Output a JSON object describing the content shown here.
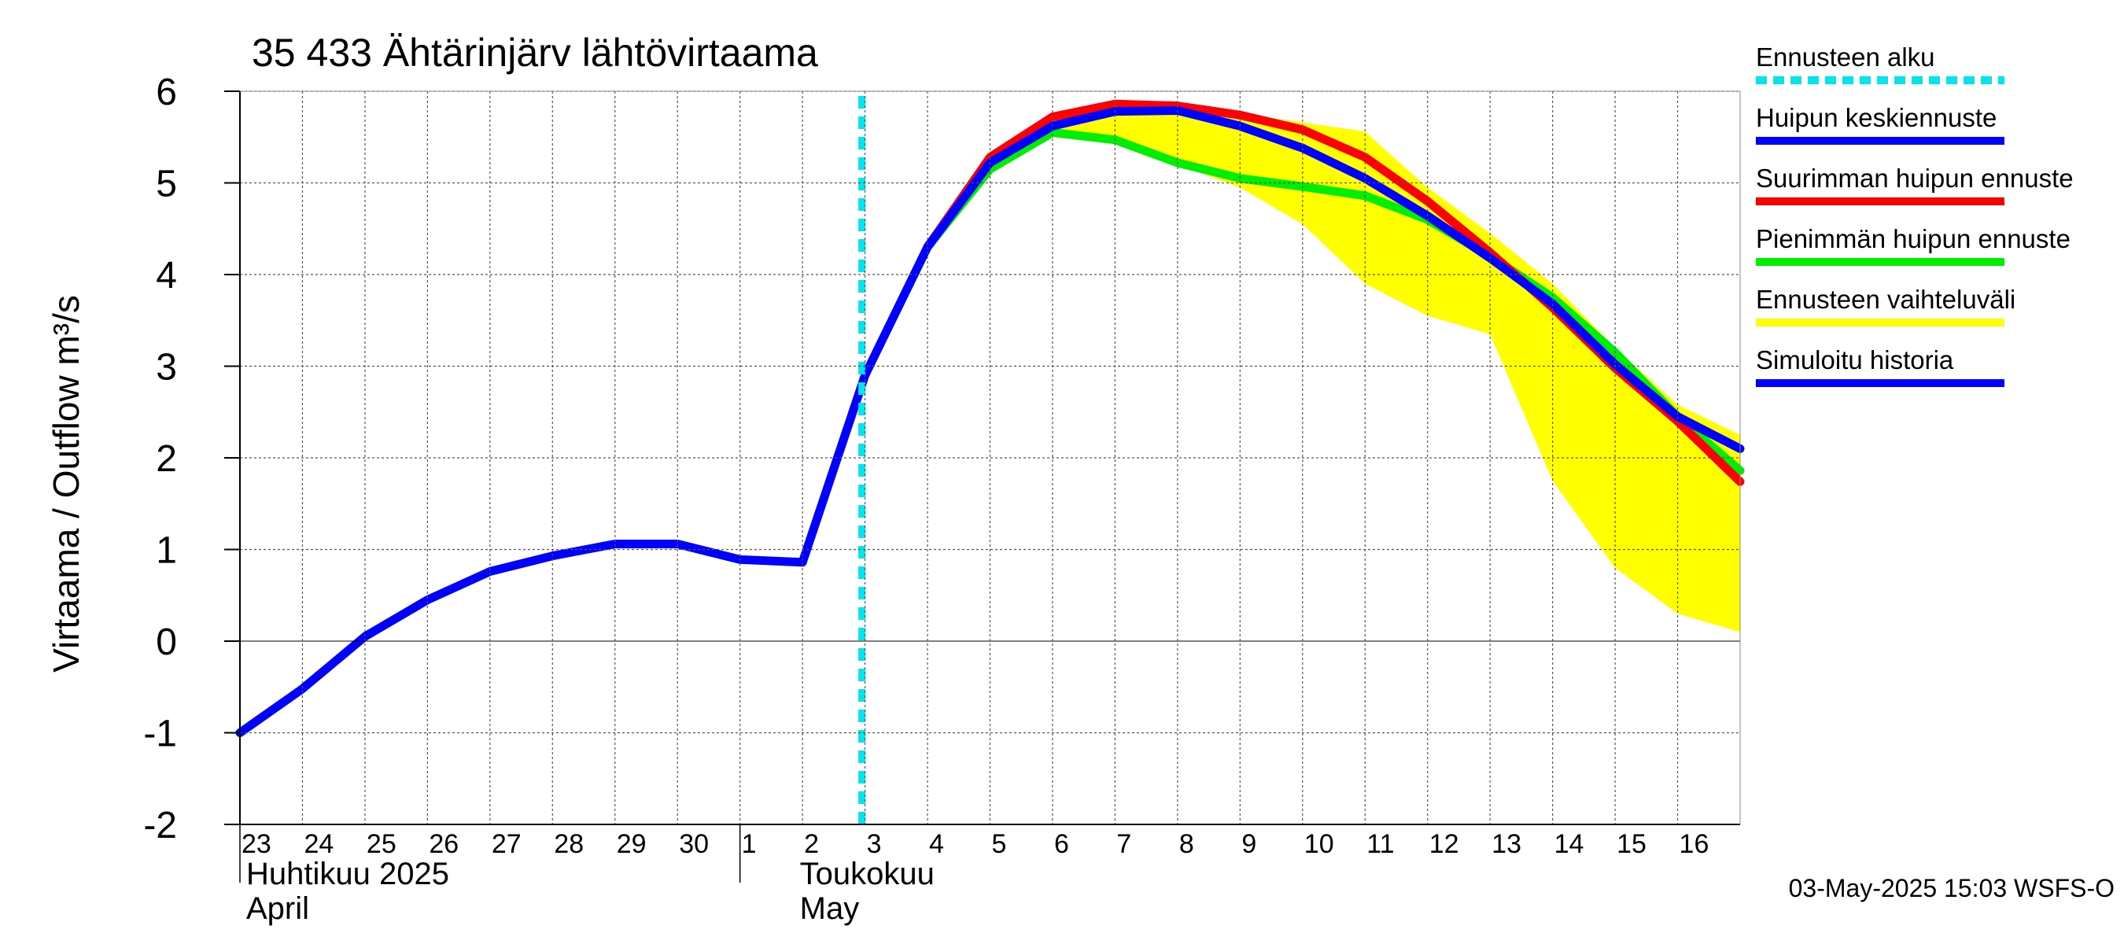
{
  "chart_data": {
    "type": "line",
    "title": "35 433 Ähtärinjärv lähtövirtaama",
    "ylabel": "Virtaama / Outflow    m³/s",
    "ylim": [
      -2,
      6
    ],
    "y_ticks": [
      "-2",
      "-1",
      "0",
      "1",
      "2",
      "3",
      "4",
      "5",
      "6"
    ],
    "x_range": [
      "2025-04-23",
      "2025-05-17"
    ],
    "x_day_labels": [
      "23",
      "24",
      "25",
      "26",
      "27",
      "28",
      "29",
      "30",
      "1",
      "2",
      "3",
      "4",
      "5",
      "6",
      "7",
      "8",
      "9",
      "10",
      "11",
      "12",
      "13",
      "14",
      "15",
      "16"
    ],
    "month_labels": [
      {
        "fi": "Huhtikuu  2025",
        "en": "April"
      },
      {
        "fi": "Toukokuu",
        "en": "May"
      }
    ],
    "forecast_start": "2025-05-03",
    "footer": "03-May-2025 15:03 WSFS-O",
    "grid": true,
    "legend_position": "right",
    "legend": [
      {
        "label": "Ennusteen alku",
        "color": "#00e5ee",
        "style": "dashed"
      },
      {
        "label": "Huipun keskiennuste",
        "color": "#0000ff",
        "style": "solid"
      },
      {
        "label": "Suurimman huipun ennuste",
        "color": "#ff0000",
        "style": "solid"
      },
      {
        "label": "Pienimmän huipun ennuste",
        "color": "#00ee00",
        "style": "solid"
      },
      {
        "label": "Ennusteen vaihteluväli",
        "color": "#ffff00",
        "style": "solid"
      },
      {
        "label": "Simuloitu historia",
        "color": "#0000ff",
        "style": "solid"
      }
    ],
    "series": [
      {
        "name": "Simuloitu historia",
        "color": "#0000ff",
        "x": [
          "2025-04-23",
          "2025-04-24",
          "2025-04-25",
          "2025-04-26",
          "2025-04-27",
          "2025-04-28",
          "2025-04-29",
          "2025-04-30",
          "2025-05-01",
          "2025-05-02",
          "2025-05-03",
          "2025-05-04"
        ],
        "values": [
          -1.0,
          -0.52,
          0.05,
          0.45,
          0.76,
          0.93,
          1.06,
          1.06,
          0.89,
          0.86,
          2.9,
          4.3
        ]
      },
      {
        "name": "Huipun keskiennuste",
        "color": "#0000ff",
        "x": [
          "2025-05-04",
          "2025-05-05",
          "2025-05-06",
          "2025-05-07",
          "2025-05-08",
          "2025-05-09",
          "2025-05-10",
          "2025-05-11",
          "2025-05-12",
          "2025-05-13",
          "2025-05-14",
          "2025-05-15",
          "2025-05-16",
          "2025-05-17"
        ],
        "values": [
          4.3,
          5.22,
          5.62,
          5.78,
          5.79,
          5.62,
          5.38,
          5.05,
          4.64,
          4.18,
          3.68,
          3.02,
          2.45,
          2.1
        ]
      },
      {
        "name": "Suurimman huipun ennuste",
        "color": "#ff0000",
        "x": [
          "2025-05-04",
          "2025-05-05",
          "2025-05-06",
          "2025-05-07",
          "2025-05-08",
          "2025-05-09",
          "2025-05-10",
          "2025-05-11",
          "2025-05-12",
          "2025-05-13",
          "2025-05-14",
          "2025-05-15",
          "2025-05-16",
          "2025-05-17"
        ],
        "values": [
          4.3,
          5.28,
          5.72,
          5.86,
          5.84,
          5.74,
          5.58,
          5.28,
          4.8,
          4.24,
          3.64,
          2.98,
          2.4,
          1.74
        ]
      },
      {
        "name": "Pienimmän huipun ennuste",
        "color": "#00ee00",
        "x": [
          "2025-05-04",
          "2025-05-05",
          "2025-05-06",
          "2025-05-07",
          "2025-05-08",
          "2025-05-09",
          "2025-05-10",
          "2025-05-11",
          "2025-05-12",
          "2025-05-13",
          "2025-05-14",
          "2025-05-15",
          "2025-05-16",
          "2025-05-17"
        ],
        "values": [
          4.3,
          5.15,
          5.55,
          5.47,
          5.22,
          5.05,
          4.96,
          4.86,
          4.6,
          4.2,
          3.75,
          3.15,
          2.45,
          1.86
        ]
      }
    ],
    "band": {
      "name": "Ennusteen vaihteluväli",
      "color": "#ffff00",
      "x": [
        "2025-05-04",
        "2025-05-05",
        "2025-05-06",
        "2025-05-07",
        "2025-05-08",
        "2025-05-09",
        "2025-05-10",
        "2025-05-11",
        "2025-05-12",
        "2025-05-13",
        "2025-05-14",
        "2025-05-15",
        "2025-05-16",
        "2025-05-17"
      ],
      "upper": [
        4.3,
        5.3,
        5.74,
        5.88,
        5.86,
        5.76,
        5.66,
        5.56,
        4.95,
        4.45,
        3.9,
        3.2,
        2.58,
        2.25
      ],
      "lower": [
        4.3,
        5.1,
        5.5,
        5.45,
        5.2,
        4.95,
        4.55,
        3.9,
        3.55,
        3.35,
        1.75,
        0.8,
        0.3,
        0.1
      ]
    }
  }
}
